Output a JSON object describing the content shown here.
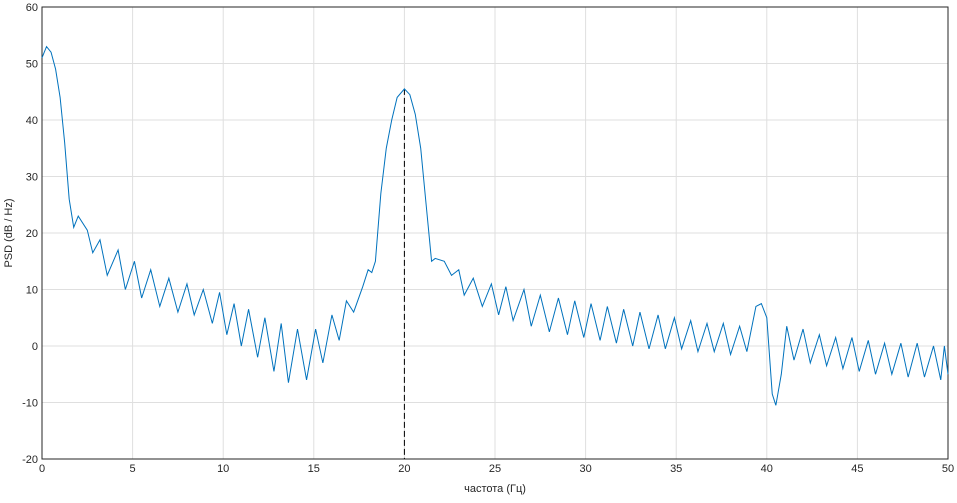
{
  "chart_data": {
    "type": "line",
    "xlabel": "частота (Гц)",
    "ylabel": "PSD (dB / Hz)",
    "x": [
      0,
      0.25,
      0.5,
      0.75,
      1,
      1.25,
      1.5,
      1.75,
      2,
      2.5,
      2.8,
      3.2,
      3.6,
      4.2,
      4.6,
      5.1,
      5.5,
      6,
      6.5,
      7,
      7.5,
      8,
      8.4,
      8.9,
      9.4,
      9.8,
      10.2,
      10.6,
      11,
      11.4,
      11.9,
      12.3,
      12.8,
      13.2,
      13.6,
      14.1,
      14.6,
      15.1,
      15.5,
      16,
      16.4,
      16.8,
      17.2,
      17.7,
      18,
      18.2,
      18.4,
      18.7,
      19,
      19.3,
      19.6,
      20,
      20.3,
      20.6,
      20.9,
      21.2,
      21.5,
      21.7,
      22.2,
      22.6,
      23,
      23.3,
      23.8,
      24.3,
      24.8,
      25.2,
      25.6,
      26,
      26.6,
      27,
      27.5,
      28,
      28.5,
      29,
      29.4,
      29.9,
      30.3,
      30.8,
      31.2,
      31.7,
      32.1,
      32.6,
      33,
      33.5,
      34,
      34.4,
      34.9,
      35.3,
      35.8,
      36.2,
      36.7,
      37.1,
      37.6,
      38,
      38.5,
      38.9,
      39.4,
      39.7,
      40,
      40.3,
      40.5,
      40.8,
      41.1,
      41.5,
      42,
      42.4,
      42.9,
      43.3,
      43.8,
      44.2,
      44.7,
      45.1,
      45.6,
      46,
      46.5,
      46.9,
      47.4,
      47.8,
      48.3,
      48.7,
      49.2,
      49.6,
      49.8,
      50
    ],
    "series": [
      {
        "color": "#0072bd",
        "values": [
          51,
          53,
          52,
          49,
          44,
          36,
          26,
          21,
          23,
          20.5,
          16.5,
          18.8,
          12.5,
          17,
          10,
          15,
          8.5,
          13.5,
          7,
          12,
          6,
          11,
          5.5,
          10,
          4,
          9.5,
          2,
          7.5,
          0,
          6.5,
          -2,
          5,
          -4.5,
          4,
          -6.5,
          3,
          -6,
          3,
          -3,
          5.5,
          1,
          8,
          6,
          10.5,
          13.5,
          13,
          15,
          27,
          35,
          40,
          44,
          45.5,
          44.5,
          41,
          35,
          25,
          15,
          15.5,
          15,
          12.5,
          13.5,
          9,
          12,
          7,
          11,
          5.5,
          10.5,
          4.5,
          10,
          3.5,
          9,
          2.5,
          8.5,
          2,
          8,
          1.5,
          7.5,
          1,
          7,
          0.5,
          6.5,
          0,
          6,
          -0.5,
          5.5,
          -0.5,
          5,
          -0.5,
          4.5,
          -1,
          4,
          -1,
          4,
          -1.5,
          3.5,
          -1,
          7,
          7.5,
          5,
          -8.5,
          -10.5,
          -5,
          3.5,
          -2.5,
          3,
          -3,
          2,
          -3.5,
          1.5,
          -4,
          1.5,
          -4.5,
          1,
          -5,
          0.5,
          -5,
          0.5,
          -5.5,
          0.5,
          -5.5,
          0,
          -6,
          0,
          -5
        ]
      }
    ],
    "marker": {
      "x": 20,
      "y": 45.5,
      "color": "#000000"
    },
    "xlim": [
      0,
      50
    ],
    "ylim": [
      -20,
      60
    ],
    "xticks": [
      0,
      5,
      10,
      15,
      20,
      25,
      30,
      35,
      40,
      45,
      50
    ],
    "yticks": [
      -20,
      -10,
      0,
      10,
      20,
      30,
      40,
      50,
      60
    ],
    "grid": true
  }
}
